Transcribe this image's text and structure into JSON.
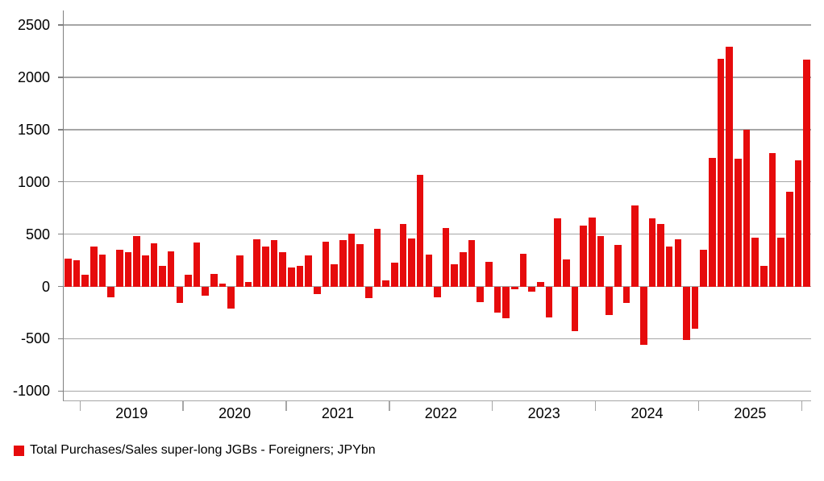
{
  "chart_data": {
    "type": "bar",
    "title": "",
    "legend": "Total Purchases/Sales super-long JGBs - Foreigners; JPYbn",
    "series_color": "#e60b0c",
    "frequency": "monthly",
    "ylabel": "",
    "xlabel": "",
    "y_axis": {
      "ticks": [
        2500,
        2000,
        1500,
        1000,
        500,
        0,
        -500,
        -1000
      ],
      "max": 2640,
      "min": -1090,
      "grid": true
    },
    "x_axis": {
      "year_labels": [
        "2019",
        "2020",
        "2021",
        "2022",
        "2023",
        "2024",
        "2025"
      ],
      "year_boundary_indices": [
        2,
        14,
        26,
        38,
        50,
        62,
        74,
        86
      ]
    },
    "values": [
      265,
      250,
      115,
      380,
      305,
      -100,
      350,
      330,
      480,
      295,
      410,
      200,
      335,
      -155,
      115,
      420,
      -90,
      120,
      30,
      -210,
      295,
      40,
      455,
      380,
      445,
      330,
      180,
      195,
      300,
      -75,
      430,
      215,
      440,
      505,
      405,
      -115,
      555,
      55,
      230,
      600,
      460,
      1070,
      305,
      -105,
      560,
      210,
      325,
      440,
      -150,
      235,
      -250,
      -305,
      -25,
      315,
      -50,
      40,
      -295,
      655,
      255,
      -430,
      580,
      660,
      480,
      -275,
      395,
      -155,
      775,
      -555,
      650,
      600,
      380,
      455,
      -510,
      -405,
      350,
      1230,
      2180,
      2290,
      1225,
      1500,
      470,
      195,
      1275,
      470,
      905,
      1210,
      2170
    ]
  }
}
